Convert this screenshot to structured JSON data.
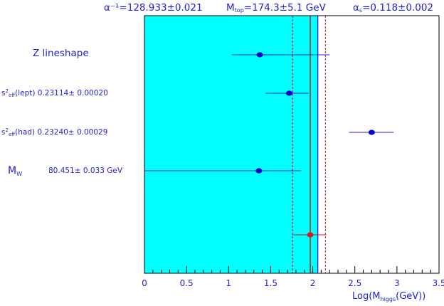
{
  "chart_data": {
    "type": "scatter",
    "header": {
      "alpha": "α⁻¹=128.933±0.021",
      "mtop": "M_top=174.3±5.1 GeV",
      "alphas": "α_s=0.118±0.002"
    },
    "xlabel": "Log(M_higgs(GeV))",
    "xlim": [
      0,
      3.5
    ],
    "xticks": [
      0,
      0.5,
      1,
      1.5,
      2,
      2.5,
      3,
      3.5
    ],
    "xtick_labels": [
      "0",
      "0.5",
      "1",
      "1.5",
      "2",
      "2.5",
      "3",
      "3.5"
    ],
    "band": {
      "from": 0,
      "to": 2.06,
      "color": "#00ffff",
      "edge_color": "#1f1fd6"
    },
    "central_line": {
      "x": 1.97,
      "color": "#d01010"
    },
    "dashed_lines": [
      {
        "x": 1.76,
        "color": "#d01010"
      },
      {
        "x": 2.15,
        "color": "#d01010"
      }
    ],
    "measurements": [
      {
        "label": "Z lineshape",
        "value_text": "",
        "x": 1.37,
        "xerr_low": 0.33,
        "xerr_high": 0.83
      },
      {
        "label": "s²_eff(lept)",
        "value_text": "0.23114± 0.00020",
        "x": 1.72,
        "xerr_low": 0.28,
        "xerr_high": 0.23
      },
      {
        "label": "s²_eff(had)",
        "value_text": "0.23240± 0.00029",
        "x": 2.7,
        "xerr_low": 0.27,
        "xerr_high": 0.26
      },
      {
        "label": "M_W",
        "value_text": "80.451± 0.033 GeV",
        "x": 1.36,
        "xerr_low": 1.36,
        "xerr_high": 0.5
      }
    ],
    "combined": {
      "x": 1.97,
      "xerr_low": 0.21,
      "xerr_high": 0.19,
      "color": "#e8101a"
    },
    "colors": {
      "text": "#1f1fd6",
      "axis": "#000000",
      "point": "#0000cc",
      "errorbar": "#1f1fd6"
    }
  }
}
